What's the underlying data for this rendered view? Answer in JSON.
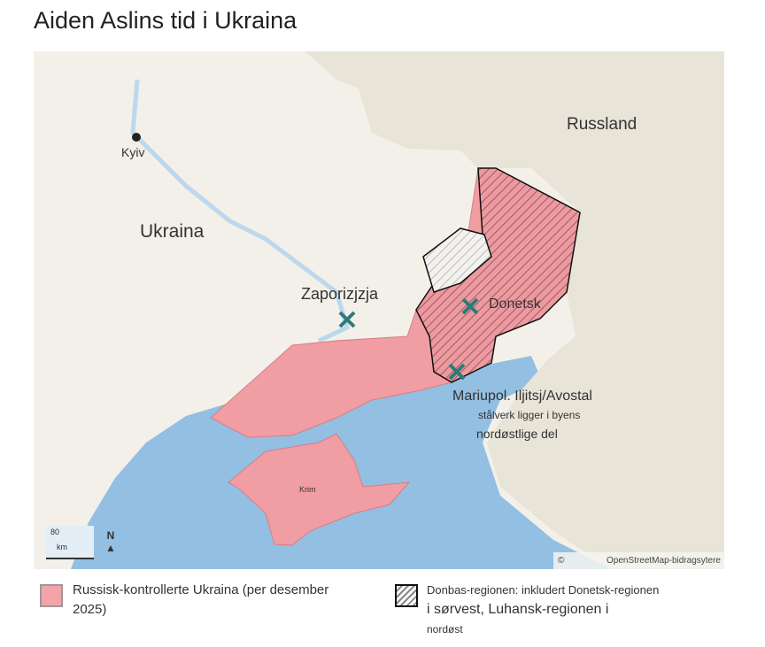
{
  "title": "Aiden Aslins tid i Ukraina",
  "map": {
    "labels": {
      "kyiv": "Kyiv",
      "ukraina": "Ukraina",
      "russland": "Russland",
      "zaporizjzja": "Zaporizjzja",
      "donetsk": "Donetsk",
      "mariupol_1": "Mariupol. Iljitsj/Avostal",
      "mariupol_2": "stålverk ligger i byens",
      "mariupol_3": "nordøstlige del",
      "krim": "Krim"
    },
    "scale": {
      "value": "80",
      "unit": "km"
    },
    "north": "N",
    "attribution": "OpenStreetMap-bidragsytere",
    "colors": {
      "land": "#f2f0e9",
      "russia": "#e8e4d8",
      "sea": "#93bfe2",
      "occupied": "#f09ea3",
      "marker": "#2e7a78"
    }
  },
  "legend": [
    {
      "label_1": "Russisk-kontrollerte Ukraina (per desember",
      "label_2": "2025)"
    },
    {
      "label_1": "Donbas-regionen: inkludert Donetsk-regionen",
      "label_2": "i sørvest, Luhansk-regionen i",
      "label_3": "nordøst"
    }
  ]
}
